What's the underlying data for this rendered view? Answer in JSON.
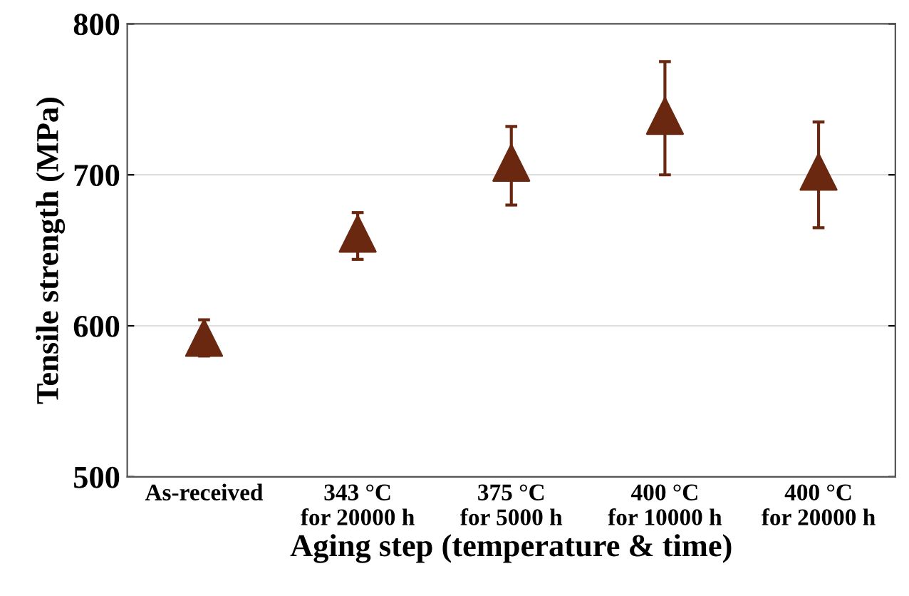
{
  "chart_data": {
    "type": "scatter",
    "xlabel": "Aging step (temperature & time)",
    "ylabel": "Tensile strength (MPa)",
    "categories": [
      "As-received",
      "343 °C\nfor 20000 h",
      "375 °C\nfor 5000 h",
      "400 °C\nfor 10000 h",
      "400 °C\nfor 20000 h"
    ],
    "series": [
      {
        "color": "#6b2810",
        "values": [
          592,
          661,
          708,
          739,
          702
        ],
        "errors": [
          12,
          [
            644,
            675
          ],
          [
            680,
            732
          ],
          [
            700,
            775
          ],
          [
            665,
            735
          ]
        ]
      }
    ],
    "ylim": [
      500,
      800
    ],
    "yticks": [
      500,
      600,
      700,
      800
    ],
    "grid": "y",
    "marker": "triangle"
  }
}
